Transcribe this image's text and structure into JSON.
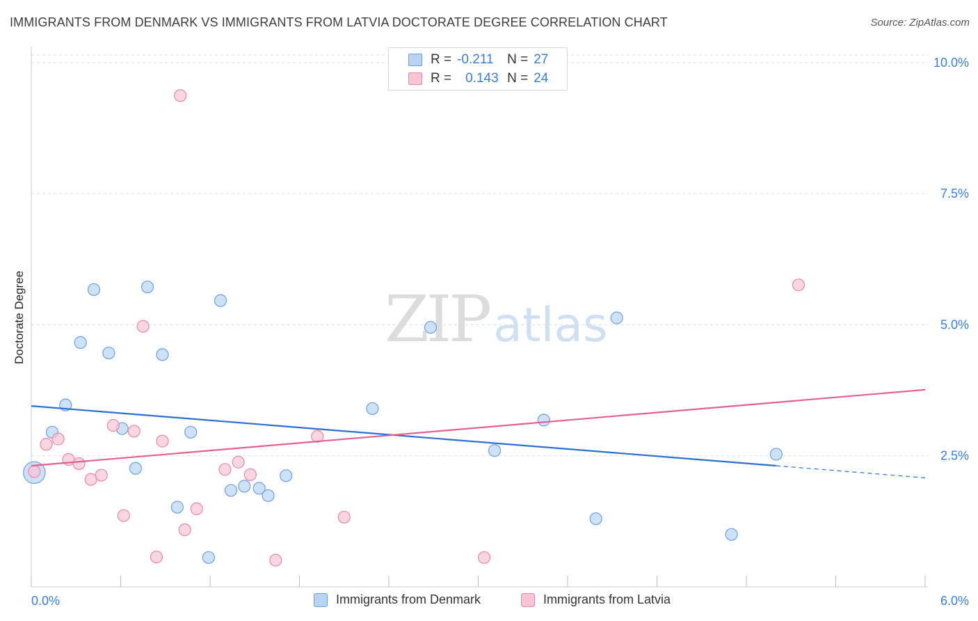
{
  "title": "IMMIGRANTS FROM DENMARK VS IMMIGRANTS FROM LATVIA DOCTORATE DEGREE CORRELATION CHART",
  "source": "Source: ZipAtlas.com",
  "watermark": {
    "zip": "ZIP",
    "atlas": "atlas"
  },
  "legend_top": [
    {
      "r_label": "R =",
      "r_value": "-0.211",
      "n_label": "N =",
      "n_value": "27"
    },
    {
      "r_label": "R =",
      "r_value": "0.143",
      "n_label": "N =",
      "n_value": "24"
    }
  ],
  "legend_bottom": [
    "Immigrants from Denmark",
    "Immigrants from Latvia"
  ],
  "colors": {
    "denmark_fill": "#b8d4f5",
    "denmark_stroke": "#6f9fe0",
    "denmark_line": "#2a6fd0",
    "latvia_fill": "#f8c4d4",
    "latvia_stroke": "#e888aa",
    "latvia_line": "#e06090",
    "axis_label": "#3b7dd8",
    "grid": "#dddddd"
  },
  "chart_data": {
    "type": "scatter",
    "title": "IMMIGRANTS FROM DENMARK VS IMMIGRANTS FROM LATVIA DOCTORATE DEGREE CORRELATION CHART",
    "xlabel": "",
    "ylabel": "Doctorate Degree",
    "xlim": [
      0,
      6
    ],
    "ylim": [
      0,
      10.25
    ],
    "x_tick_labels": [
      "0.0%",
      "6.0%"
    ],
    "y_ticks": [
      2.5,
      5.0,
      7.5,
      10.0
    ],
    "y_tick_labels": [
      "2.5%",
      "5.0%",
      "7.5%",
      "10.0%"
    ],
    "grid": true,
    "legend_position": "top-center",
    "series": [
      {
        "name": "Immigrants from Denmark",
        "r": -0.211,
        "n": 27,
        "points": [
          [
            0.02,
            2.18,
            1.6
          ],
          [
            0.14,
            2.95,
            1
          ],
          [
            0.23,
            3.47,
            1
          ],
          [
            0.33,
            4.66,
            1
          ],
          [
            0.42,
            5.67,
            1
          ],
          [
            0.52,
            4.46,
            1
          ],
          [
            0.61,
            3.02,
            1
          ],
          [
            0.7,
            2.26,
            1
          ],
          [
            0.78,
            5.72,
            1
          ],
          [
            0.88,
            4.43,
            1
          ],
          [
            0.98,
            1.52,
            1
          ],
          [
            1.07,
            2.95,
            1
          ],
          [
            1.19,
            0.56,
            1
          ],
          [
            1.27,
            5.46,
            1
          ],
          [
            1.34,
            1.84,
            1
          ],
          [
            1.43,
            1.92,
            1
          ],
          [
            1.53,
            1.88,
            1
          ],
          [
            1.59,
            1.74,
            1
          ],
          [
            1.71,
            2.12,
            1
          ],
          [
            2.29,
            3.4,
            1
          ],
          [
            2.68,
            4.95,
            1
          ],
          [
            3.11,
            2.6,
            1
          ],
          [
            3.44,
            3.18,
            1
          ],
          [
            3.79,
            1.3,
            1
          ],
          [
            3.93,
            5.13,
            1
          ],
          [
            4.7,
            1.0,
            1
          ],
          [
            5.0,
            2.53,
            1
          ]
        ],
        "trend": {
          "x0": 0.0,
          "y0": 3.45,
          "x1": 5.0,
          "y1": 2.31,
          "dash_x1": 6.0,
          "dash_y1": 2.08
        }
      },
      {
        "name": "Immigrants from Latvia",
        "r": 0.143,
        "n": 24,
        "points": [
          [
            0.02,
            2.2,
            1
          ],
          [
            0.1,
            2.72,
            1
          ],
          [
            0.18,
            2.82,
            1
          ],
          [
            0.25,
            2.43,
            1
          ],
          [
            0.32,
            2.35,
            1
          ],
          [
            0.4,
            2.05,
            1
          ],
          [
            0.47,
            2.13,
            1
          ],
          [
            0.55,
            3.08,
            1
          ],
          [
            0.62,
            1.36,
            1
          ],
          [
            0.69,
            2.97,
            1
          ],
          [
            0.75,
            4.97,
            1
          ],
          [
            0.84,
            0.57,
            1
          ],
          [
            0.88,
            2.78,
            1
          ],
          [
            1.0,
            9.37,
            1
          ],
          [
            1.03,
            1.09,
            1
          ],
          [
            1.11,
            1.49,
            1
          ],
          [
            1.3,
            2.24,
            1
          ],
          [
            1.39,
            2.38,
            1
          ],
          [
            1.47,
            2.14,
            1
          ],
          [
            1.64,
            0.51,
            1
          ],
          [
            1.92,
            2.87,
            1
          ],
          [
            2.1,
            1.33,
            1
          ],
          [
            3.04,
            0.56,
            1
          ],
          [
            5.15,
            5.76,
            1
          ]
        ],
        "trend": {
          "x0": 0.0,
          "y0": 2.31,
          "x1": 6.0,
          "y1": 3.76
        }
      }
    ]
  }
}
